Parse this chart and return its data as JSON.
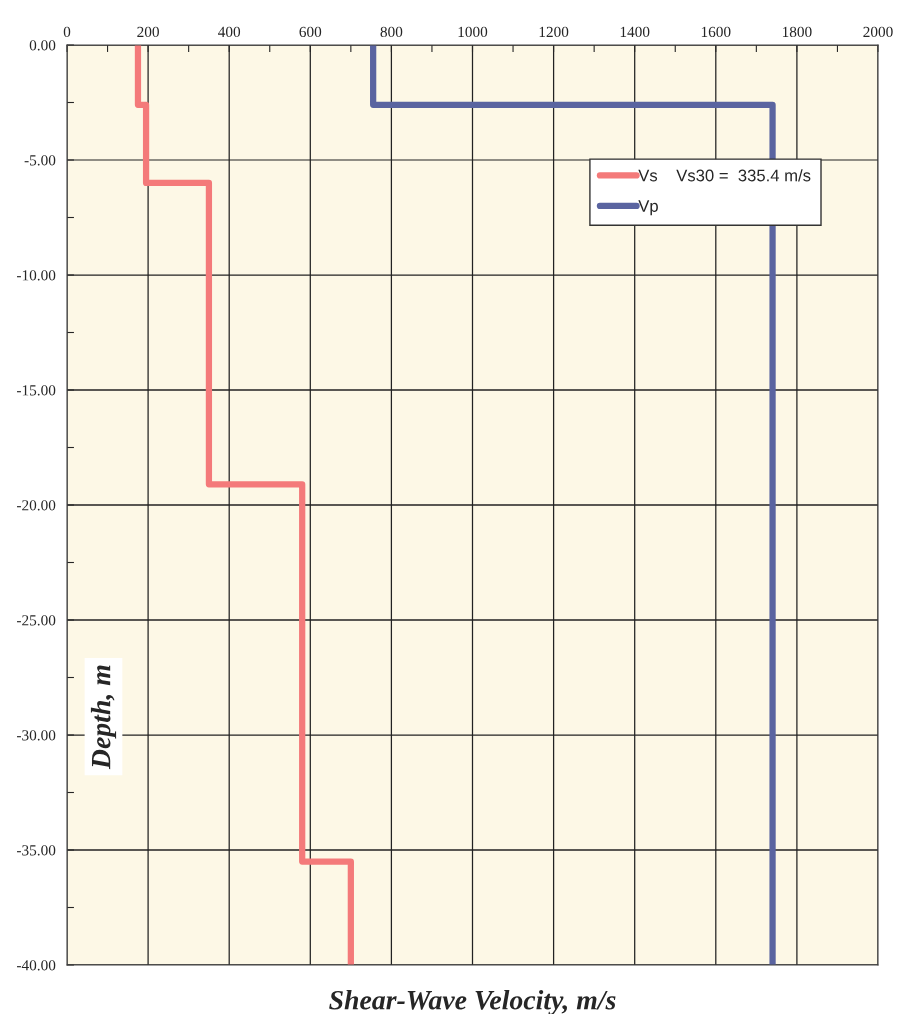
{
  "chart_data": {
    "type": "line",
    "xlabel": "Shear-Wave Velocity, m/s",
    "ylabel": "Depth, m",
    "series": [
      {
        "name": "Vs    Vs30 =  335.4 m/s",
        "color": "#f47a7a",
        "x": [
          175,
          175,
          195,
          195,
          350,
          350,
          580,
          580,
          700,
          700
        ],
        "values": [
          0,
          -2.6,
          -2.6,
          -6.0,
          -6.0,
          -19.1,
          -19.1,
          -35.5,
          -35.5,
          -40
        ]
      },
      {
        "name": "Vp",
        "color": "#5a64a0",
        "x": [
          755,
          755,
          1740,
          1740
        ],
        "values": [
          0,
          -2.6,
          -2.6,
          -40
        ]
      }
    ],
    "xlim": [
      0,
      2000
    ],
    "xticks": [
      0,
      {
        "value": 100,
        "label": null
      },
      200,
      {
        "value": 300,
        "label": null
      },
      400,
      {
        "value": 500,
        "label": null
      },
      600,
      {
        "value": 700,
        "label": null
      },
      800,
      {
        "value": 900,
        "label": null
      },
      1000,
      {
        "value": 1100,
        "label": null
      },
      1200,
      {
        "value": 1300,
        "label": null
      },
      1400,
      {
        "value": 1500,
        "label": null
      },
      1600,
      {
        "value": 1700,
        "label": null
      },
      1800,
      {
        "value": 1900,
        "label": null
      },
      2000
    ],
    "ylim": [
      -40,
      0
    ],
    "yticks": [
      {
        "value": 0,
        "label": "0.00"
      },
      {
        "value": -2.5,
        "label": null
      },
      {
        "value": -5,
        "label": "-5.00"
      },
      {
        "value": -7.5,
        "label": null
      },
      {
        "value": -10,
        "label": "-10.00"
      },
      {
        "value": -12.5,
        "label": null
      },
      {
        "value": -15,
        "label": "-15.00"
      },
      {
        "value": -17.5,
        "label": null
      },
      {
        "value": -20,
        "label": "-20.00"
      },
      {
        "value": -22.5,
        "label": null
      },
      {
        "value": -25,
        "label": "-25.00"
      },
      {
        "value": -27.5,
        "label": null
      },
      {
        "value": -30,
        "label": "-30.00"
      },
      {
        "value": -32.5,
        "label": null
      },
      {
        "value": -35,
        "label": "-35.00"
      },
      {
        "value": -37.5,
        "label": null
      },
      {
        "value": -40,
        "label": "-40.00"
      }
    ],
    "grid": true,
    "legend": "top right"
  }
}
